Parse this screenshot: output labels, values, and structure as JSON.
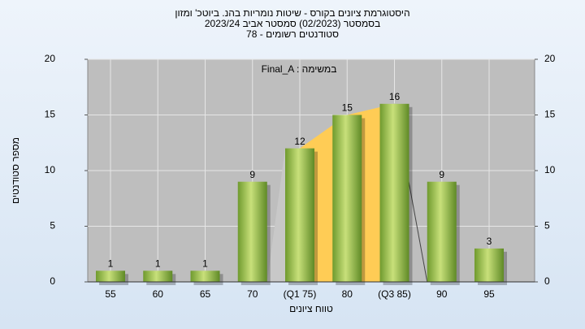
{
  "chart_data": {
    "type": "bar",
    "title": "היסטוגרמת ציונים בקורס - שיטות נומריות בהנ. ביוטכ' ומזון",
    "subtitle": "בסמסטר  (02/2023)  סמסטר אביב  2023/24",
    "subtitle2": "סטודנטים רשומים - 78",
    "annotation": "Final_A : במשימה",
    "x_label": "טווח ציונים",
    "y_label": "מספר סטודנטים",
    "categories": [
      "55",
      "60",
      "65",
      "70",
      "(Q1 75)",
      "80",
      "(Q3 85)",
      "90",
      "95"
    ],
    "values": [
      1,
      1,
      1,
      9,
      12,
      15,
      16,
      9,
      3
    ],
    "color": "#8db84a",
    "ylim": [
      0,
      20
    ],
    "yticks": [
      0,
      5,
      10,
      15,
      20
    ],
    "y2lim": [
      0,
      20
    ],
    "y2ticks": [
      0,
      5,
      10,
      15,
      20
    ],
    "grid": true
  }
}
